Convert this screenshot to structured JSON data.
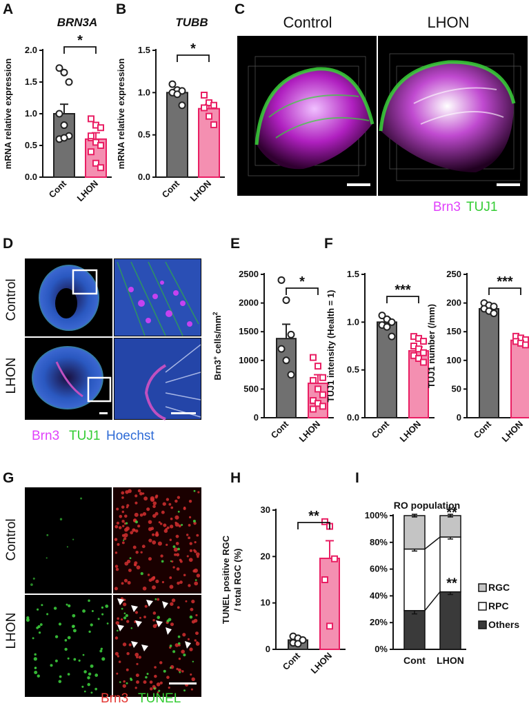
{
  "panel_labels": {
    "A": "A",
    "B": "B",
    "C": "C",
    "D": "D",
    "E": "E",
    "F": "F",
    "G": "G",
    "H": "H",
    "I": "I"
  },
  "colors": {
    "control": "#707070",
    "lhon": "#f48fb1",
    "lhon_edge": "#e91e63",
    "brn3_magenta": "#e040fb",
    "tuj1_green": "#33cc33",
    "hoechst_blue": "#2e6bd6",
    "brn3_red": "#e53935",
    "tunel_green": "#33cc33",
    "rgc": "#c4c4c4",
    "rpc": "#ffffff",
    "others": "#3a3a3a"
  },
  "panel_c": {
    "col_control": "Control",
    "col_lhon": "LHON",
    "channel_brn3": "Brn3",
    "channel_tuj1": "TUJ1"
  },
  "panel_d": {
    "row_control": "Control",
    "row_lhon": "LHON",
    "channel_brn3": "Brn3",
    "channel_tuj1": "TUJ1",
    "channel_hoechst": "Hoechst"
  },
  "panel_g": {
    "row_control": "Control",
    "row_lhon": "LHON",
    "channel_brn3": "Brn3",
    "channel_tunel": "TUNEL"
  },
  "chart_data": [
    {
      "id": "A",
      "type": "bar",
      "title": "BRN3A",
      "ylabel": "mRNA relative  expression",
      "categories": [
        "Cont",
        "LHON"
      ],
      "values": [
        1.0,
        0.6
      ],
      "errors": [
        0.15,
        0.1
      ],
      "ylim": [
        0,
        2.0
      ],
      "yticks": [
        "0.0",
        "0.5",
        "1.0",
        "1.5",
        "2.0"
      ],
      "significance": "*",
      "points": [
        [
          1.72,
          1.65,
          1.5,
          1.0,
          0.82,
          0.65,
          0.6,
          0.62
        ],
        [
          0.92,
          0.82,
          0.78,
          0.62,
          0.55,
          0.5,
          0.4,
          0.22,
          0.15,
          0.65
        ]
      ]
    },
    {
      "id": "B",
      "type": "bar",
      "title": "TUBB",
      "ylabel": "mRNA relative expression",
      "categories": [
        "Cont",
        "LHON"
      ],
      "values": [
        1.0,
        0.81
      ],
      "errors": [
        0.04,
        0.05
      ],
      "ylim": [
        0,
        1.5
      ],
      "yticks": [
        "0.0",
        "0.5",
        "1.0",
        "1.5"
      ],
      "significance": "*",
      "points": [
        [
          1.1,
          1.03,
          1.02,
          1.0,
          0.98,
          0.85
        ],
        [
          0.97,
          0.88,
          0.85,
          0.82,
          0.72,
          0.62
        ]
      ]
    },
    {
      "id": "E",
      "type": "bar",
      "ylabel": "Brn3+ cells/mm2",
      "categories": [
        "Cont",
        "LHON"
      ],
      "values": [
        1380,
        600
      ],
      "errors": [
        250,
        150
      ],
      "ylim": [
        0,
        2500
      ],
      "yticks": [
        "0",
        "500",
        "1000",
        "1500",
        "2000",
        "2500"
      ],
      "significance": "*",
      "points": [
        [
          2400,
          2050,
          1450,
          1200,
          1000,
          750
        ],
        [
          1050,
          900,
          700,
          650,
          500,
          400,
          300,
          250,
          200,
          150
        ]
      ]
    },
    {
      "id": "F1",
      "type": "bar",
      "ylabel": "TUJ1 intensity (Health = 1)",
      "categories": [
        "Cont",
        "LHON"
      ],
      "values": [
        1.0,
        0.7
      ],
      "errors": [
        0.04,
        0.04
      ],
      "ylim": [
        0,
        1.5
      ],
      "yticks": [
        "0.0",
        "0.5",
        "1.0",
        "1.5"
      ],
      "significance": "***",
      "points": [
        [
          1.07,
          1.03,
          1.0,
          0.97,
          0.95,
          0.85
        ],
        [
          0.85,
          0.83,
          0.8,
          0.75,
          0.72,
          0.68,
          0.65,
          0.62,
          0.58
        ]
      ]
    },
    {
      "id": "F2",
      "type": "bar",
      "ylabel": "TUJ1 number (/mm)",
      "categories": [
        "Cont",
        "LHON"
      ],
      "values": [
        190,
        135
      ],
      "errors": [
        4,
        3
      ],
      "ylim": [
        0,
        250
      ],
      "yticks": [
        "0",
        "50",
        "100",
        "150",
        "200",
        "250"
      ],
      "significance": "***",
      "points": [
        [
          200,
          196,
          194,
          190,
          186,
          182
        ],
        [
          142,
          139,
          136,
          133,
          130,
          127
        ]
      ]
    },
    {
      "id": "H",
      "type": "bar",
      "ylabel": "TUNEL positive RGC / total RGC (%)",
      "categories": [
        "Cont",
        "LHON"
      ],
      "values": [
        2.0,
        19.6
      ],
      "errors": [
        0.5,
        3.8
      ],
      "ylim": [
        0,
        30
      ],
      "yticks": [
        "0",
        "10",
        "20",
        "30"
      ],
      "significance": "**",
      "points": [
        [
          2.8,
          2.4,
          2.0,
          1.4,
          1.2
        ],
        [
          27.5,
          26.5,
          19.5,
          15.0,
          5.0
        ]
      ]
    },
    {
      "id": "I",
      "type": "stacked_bar",
      "title": "RO population",
      "categories": [
        "Cont",
        "LHON"
      ],
      "yticks": [
        "0%",
        "20%",
        "40%",
        "60%",
        "80%",
        "100%"
      ],
      "ylim": [
        0,
        100
      ],
      "series": [
        {
          "name": "Others",
          "values": [
            29,
            43
          ],
          "errors": [
            2.5,
            2
          ]
        },
        {
          "name": "RPC",
          "values": [
            46,
            41
          ],
          "errors": [
            1.5,
            1.5
          ]
        },
        {
          "name": "RGC",
          "values": [
            25,
            16
          ],
          "errors": [
            1,
            1
          ]
        }
      ],
      "significance": {
        "RGC": "**",
        "Others": "**"
      }
    }
  ]
}
